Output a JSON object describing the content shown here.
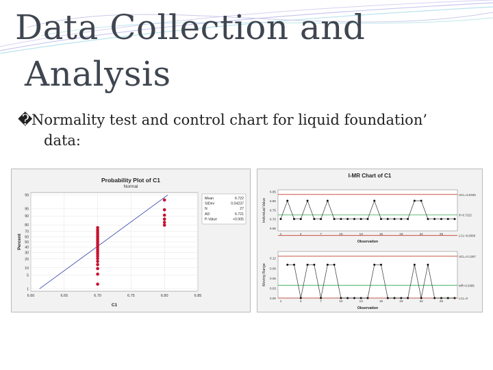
{
  "slide": {
    "title_line1": "Data Collection and",
    "title_line2": "Analysis",
    "bullet_marker": "�",
    "bullet_line1": "Normality test and control chart for liquid foundation’",
    "bullet_line2": "data:"
  },
  "chart_data": [
    {
      "type": "scatter",
      "title": "Probability Plot of C1",
      "subtitle": "Normal",
      "xlabel": "C1",
      "ylabel": "Percent",
      "xlim": [
        6.6,
        6.85
      ],
      "x_ticks": [
        "6.60",
        "6.65",
        "6.70",
        "6.75",
        "6.80",
        "6.85"
      ],
      "y_ticks": [
        "1",
        "5",
        "10",
        "20",
        "30",
        "40",
        "50",
        "60",
        "70",
        "80",
        "90",
        "95",
        "99"
      ],
      "grid": true,
      "fit_line": {
        "from": [
          6.613,
          1
        ],
        "to": [
          6.805,
          99
        ]
      },
      "points": [
        {
          "x": 6.7,
          "y": 1.8
        },
        {
          "x": 6.7,
          "y": 5.5
        },
        {
          "x": 6.7,
          "y": 9.3
        },
        {
          "x": 6.7,
          "y": 13
        },
        {
          "x": 6.7,
          "y": 16.7
        },
        {
          "x": 6.7,
          "y": 20.4
        },
        {
          "x": 6.7,
          "y": 24.1
        },
        {
          "x": 6.7,
          "y": 27.8
        },
        {
          "x": 6.7,
          "y": 31.5
        },
        {
          "x": 6.7,
          "y": 35.2
        },
        {
          "x": 6.7,
          "y": 38.9
        },
        {
          "x": 6.7,
          "y": 42.6
        },
        {
          "x": 6.7,
          "y": 46.3
        },
        {
          "x": 6.7,
          "y": 50
        },
        {
          "x": 6.7,
          "y": 53.7
        },
        {
          "x": 6.7,
          "y": 57.4
        },
        {
          "x": 6.7,
          "y": 61.1
        },
        {
          "x": 6.7,
          "y": 64.8
        },
        {
          "x": 6.7,
          "y": 68.5
        },
        {
          "x": 6.7,
          "y": 72.2
        },
        {
          "x": 6.7,
          "y": 75.9
        },
        {
          "x": 6.8,
          "y": 79.6
        },
        {
          "x": 6.8,
          "y": 83.3
        },
        {
          "x": 6.8,
          "y": 87
        },
        {
          "x": 6.8,
          "y": 90.7
        },
        {
          "x": 6.8,
          "y": 94.4
        },
        {
          "x": 6.8,
          "y": 98.1
        }
      ],
      "stats": [
        {
          "label": "Mean",
          "value": "6.722"
        },
        {
          "label": "StDev",
          "value": "0.04237"
        },
        {
          "label": "N",
          "value": "27"
        },
        {
          "label": "AD",
          "value": "6.721"
        },
        {
          "label": "P-Value",
          "value": "<0.005"
        }
      ]
    },
    {
      "type": "line",
      "title": "I-MR Chart of C1",
      "individual": {
        "ylabel": "Individual Value",
        "xlabel": "Observation",
        "ylim": [
          6.635,
          6.86
        ],
        "y_ticks": [
          "6.85",
          "6.80",
          "6.75",
          "6.70",
          "6.65"
        ],
        "x_ticks": [
          "1",
          "4",
          "7",
          "10",
          "13",
          "16",
          "19",
          "22",
          "25"
        ],
        "values": [
          6.7,
          6.8,
          6.7,
          6.7,
          6.8,
          6.7,
          6.7,
          6.8,
          6.7,
          6.7,
          6.7,
          6.7,
          6.7,
          6.7,
          6.8,
          6.7,
          6.7,
          6.7,
          6.7,
          6.7,
          6.8,
          6.8,
          6.7,
          6.7,
          6.7,
          6.7,
          6.7
        ],
        "ucl": 6.8345,
        "center": 6.7222,
        "lcl": 6.6099,
        "ucl_label": "UCL=6.8345",
        "center_label": "X̄=6.7222",
        "lcl_label": "LCL=6.6099"
      },
      "moving_range": {
        "ylabel": "Moving Range",
        "xlabel": "Observation",
        "ylim": [
          0,
          0.14
        ],
        "y_ticks": [
          "0.12",
          "0.09",
          "0.06",
          "0.03",
          "0.00"
        ],
        "x_ticks": [
          "1",
          "4",
          "7",
          "10",
          "13",
          "16",
          "19",
          "22",
          "25"
        ],
        "values": [
          null,
          0.1,
          0.1,
          0,
          0.1,
          0.1,
          0,
          0.1,
          0.1,
          0,
          0,
          0,
          0,
          0,
          0.1,
          0.1,
          0,
          0,
          0,
          0,
          0.1,
          0,
          0.1,
          0,
          0,
          0,
          0
        ],
        "ucl": 0.1257,
        "center": 0.0385,
        "lcl": 0,
        "ucl_label": "UCL=0.1257",
        "center_label": "MR̄=0.0385",
        "lcl_label": "LCL=0"
      }
    }
  ]
}
